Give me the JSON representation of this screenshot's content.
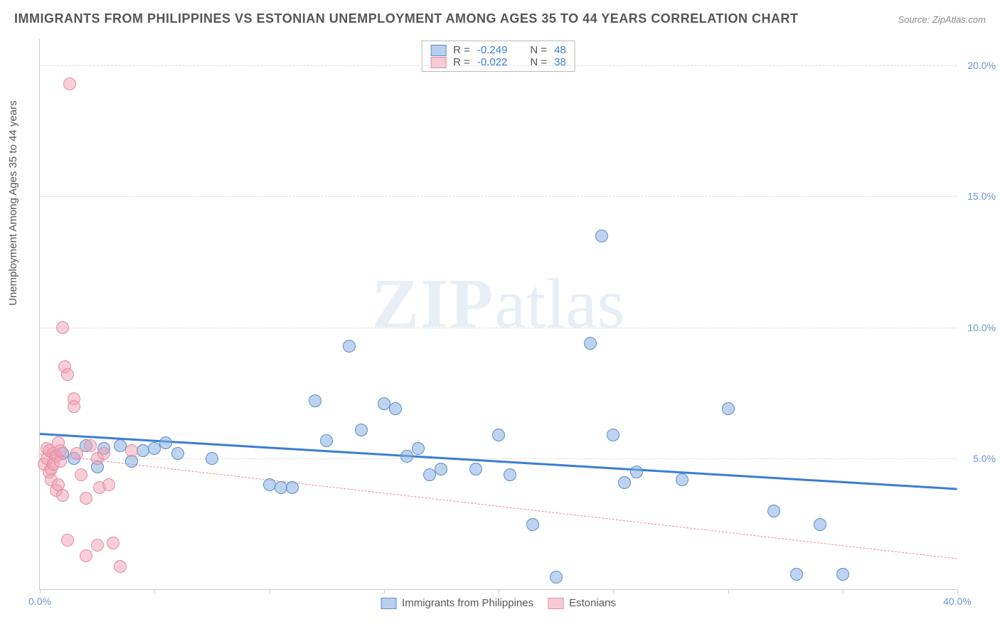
{
  "title": "IMMIGRANTS FROM PHILIPPINES VS ESTONIAN UNEMPLOYMENT AMONG AGES 35 TO 44 YEARS CORRELATION CHART",
  "source_label": "Source: ",
  "source_name": "ZipAtlas.com",
  "y_axis_title": "Unemployment Among Ages 35 to 44 years",
  "watermark_bold": "ZIP",
  "watermark_rest": "atlas",
  "chart": {
    "type": "scatter",
    "xlim": [
      0,
      40
    ],
    "ylim": [
      0,
      21
    ],
    "x_ticks": [
      0,
      5,
      10,
      15,
      20,
      25,
      30,
      35,
      40
    ],
    "x_tick_labels": {
      "0": "0.0%",
      "40": "40.0%"
    },
    "y_ticks": [
      5,
      10,
      15,
      20
    ],
    "y_tick_labels": {
      "5": "5.0%",
      "10": "10.0%",
      "15": "15.0%",
      "20": "20.0%"
    },
    "grid_color": "#dddddd",
    "background_color": "#ffffff",
    "series": [
      {
        "name": "Immigrants from Philippines",
        "color_fill": "rgba(135,175,225,0.55)",
        "color_stroke": "#5b8cc9",
        "marker": "circle",
        "marker_size": 18,
        "points": [
          [
            1.0,
            5.2
          ],
          [
            1.5,
            5.0
          ],
          [
            2.0,
            5.5
          ],
          [
            2.5,
            4.7
          ],
          [
            2.8,
            5.4
          ],
          [
            3.5,
            5.5
          ],
          [
            4.0,
            4.9
          ],
          [
            4.5,
            5.3
          ],
          [
            5.0,
            5.4
          ],
          [
            5.5,
            5.6
          ],
          [
            6.0,
            5.2
          ],
          [
            7.5,
            5.0
          ],
          [
            10.0,
            4.0
          ],
          [
            10.5,
            3.9
          ],
          [
            11.0,
            3.9
          ],
          [
            12.0,
            7.2
          ],
          [
            12.5,
            5.7
          ],
          [
            13.5,
            9.3
          ],
          [
            14.0,
            6.1
          ],
          [
            15.0,
            7.1
          ],
          [
            15.5,
            6.9
          ],
          [
            16.0,
            5.1
          ],
          [
            16.5,
            5.4
          ],
          [
            17.0,
            4.4
          ],
          [
            17.5,
            4.6
          ],
          [
            19.0,
            4.6
          ],
          [
            20.0,
            5.9
          ],
          [
            20.5,
            4.4
          ],
          [
            21.5,
            2.5
          ],
          [
            22.5,
            0.5
          ],
          [
            24.0,
            9.4
          ],
          [
            24.5,
            13.5
          ],
          [
            25.0,
            5.9
          ],
          [
            25.5,
            4.1
          ],
          [
            26.0,
            4.5
          ],
          [
            28.0,
            4.2
          ],
          [
            30.0,
            6.9
          ],
          [
            32.0,
            3.0
          ],
          [
            33.0,
            0.6
          ],
          [
            34.0,
            2.5
          ],
          [
            35.0,
            0.6
          ]
        ],
        "trend": {
          "x1": 0,
          "y1": 6.0,
          "x2": 40,
          "y2": 3.9,
          "style": "solid",
          "color": "#3b7dd8",
          "width": 3
        }
      },
      {
        "name": "Estonians",
        "color_fill": "rgba(240,160,180,0.5)",
        "color_stroke": "#e68aa3",
        "marker": "circle",
        "marker_size": 18,
        "points": [
          [
            0.2,
            4.8
          ],
          [
            0.3,
            5.0
          ],
          [
            0.3,
            5.4
          ],
          [
            0.4,
            4.5
          ],
          [
            0.4,
            5.3
          ],
          [
            0.5,
            4.2
          ],
          [
            0.5,
            4.6
          ],
          [
            0.6,
            5.2
          ],
          [
            0.6,
            4.8
          ],
          [
            0.7,
            5.1
          ],
          [
            0.7,
            3.8
          ],
          [
            0.8,
            4.0
          ],
          [
            0.8,
            5.6
          ],
          [
            0.9,
            4.9
          ],
          [
            0.9,
            5.3
          ],
          [
            1.0,
            3.6
          ],
          [
            1.0,
            10.0
          ],
          [
            1.1,
            8.5
          ],
          [
            1.2,
            8.2
          ],
          [
            1.2,
            1.9
          ],
          [
            1.3,
            19.3
          ],
          [
            1.5,
            7.3
          ],
          [
            1.5,
            7.0
          ],
          [
            1.6,
            5.2
          ],
          [
            1.8,
            4.4
          ],
          [
            2.0,
            3.5
          ],
          [
            2.0,
            1.3
          ],
          [
            2.2,
            5.5
          ],
          [
            2.5,
            5.0
          ],
          [
            2.5,
            1.7
          ],
          [
            2.6,
            3.9
          ],
          [
            2.8,
            5.2
          ],
          [
            3.0,
            4.0
          ],
          [
            3.2,
            1.8
          ],
          [
            3.5,
            0.9
          ],
          [
            4.0,
            5.3
          ]
        ],
        "trend": {
          "x1": 0,
          "y1": 5.2,
          "x2": 40,
          "y2": 1.2,
          "style": "dashed",
          "color": "#e68aa3",
          "width": 1.5
        }
      }
    ]
  },
  "stats_legend": [
    {
      "swatch": "blue",
      "r_label": "R = ",
      "r_value": "-0.249",
      "n_label": "N = ",
      "n_value": "48"
    },
    {
      "swatch": "pink",
      "r_label": "R = ",
      "r_value": "-0.022",
      "n_label": "N = ",
      "n_value": "38"
    }
  ],
  "bottom_legend": [
    {
      "swatch": "blue",
      "label": "Immigrants from Philippines"
    },
    {
      "swatch": "pink",
      "label": "Estonians"
    }
  ]
}
